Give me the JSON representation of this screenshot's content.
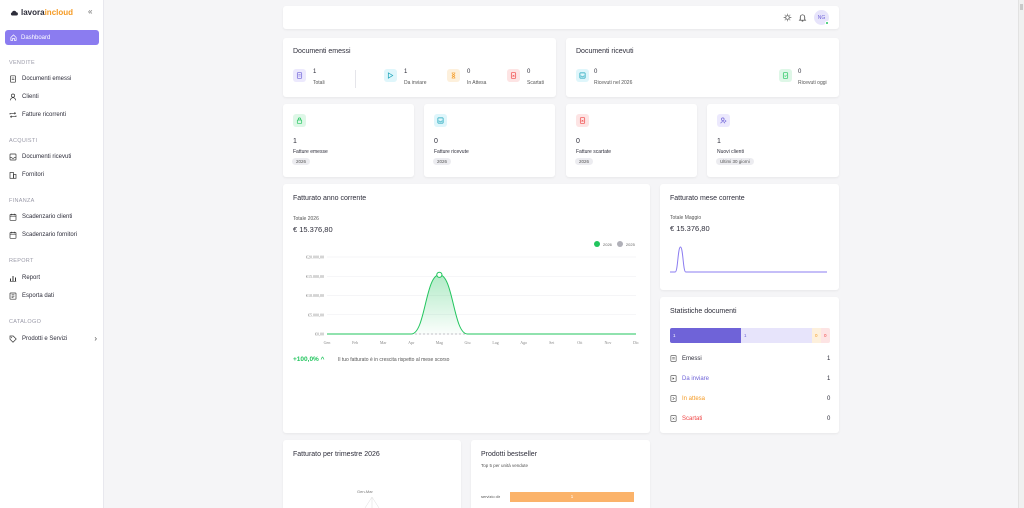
{
  "brand": {
    "part1": "lavora",
    "part2": "incloud"
  },
  "colors": {
    "accent": "#8b7cf0",
    "green": "#22c55e",
    "orange": "#f59a23",
    "red": "#ef4444"
  },
  "sidebar": {
    "dashboard": "Dashboard",
    "sections": [
      {
        "title": "VENDITE",
        "items": [
          "Documenti emessi",
          "Clienti",
          "Fatture ricorrenti"
        ]
      },
      {
        "title": "ACQUISTI",
        "items": [
          "Documenti ricevuti",
          "Fornitori"
        ]
      },
      {
        "title": "FINANZA",
        "items": [
          "Scadenzario clienti",
          "Scadenzario fornitori"
        ]
      },
      {
        "title": "REPORT",
        "items": [
          "Report",
          "Esporta dati"
        ]
      },
      {
        "title": "CATALOGO",
        "items": [
          "Prodotti e Servizi"
        ]
      }
    ]
  },
  "header": {
    "avatar": "NG"
  },
  "emessi": {
    "title": "Documenti emessi",
    "stats": [
      {
        "value": "1",
        "label": "Totali"
      },
      {
        "value": "1",
        "label": "Da inviare"
      },
      {
        "value": "0",
        "label": "In Attesa"
      },
      {
        "value": "0",
        "label": "Scartati"
      }
    ]
  },
  "ricevuti": {
    "title": "Documenti ricevuti",
    "stats": [
      {
        "value": "0",
        "label": "Ricevuti nel 2026"
      },
      {
        "value": "0",
        "label": "Ricevuti oggi"
      }
    ]
  },
  "kpis": [
    {
      "value": "1",
      "label": "Fatture emesse",
      "chip": "2026"
    },
    {
      "value": "0",
      "label": "Fatture ricevute",
      "chip": "2026"
    },
    {
      "value": "0",
      "label": "Fatture scartate",
      "chip": "2026"
    },
    {
      "value": "1",
      "label": "Nuovi clienti",
      "chip": "Ultimi 30 giorni"
    }
  ],
  "fatturato_anno": {
    "title": "Fatturato anno corrente",
    "sub": "Totale 2026",
    "total": "€ 15.376,80",
    "legend": [
      "2026",
      "2025"
    ],
    "growth": "+100,0%",
    "growth_text": "Il tuo fatturato è in crescita rispetto al mese scorso"
  },
  "fatturato_mese": {
    "title": "Fatturato mese corrente",
    "sub": "Totale Maggio",
    "total": "€ 15.376,80"
  },
  "statistiche": {
    "title": "Statistiche documenti",
    "bar": {
      "emessi": "1",
      "da_inviare": "1",
      "in_attesa": "0",
      "scartati": "0"
    },
    "rows": [
      {
        "label": "Emessi",
        "value": "1"
      },
      {
        "label": "Da inviare",
        "value": "1"
      },
      {
        "label": "In attesa",
        "value": "0"
      },
      {
        "label": "Scartati",
        "value": "0"
      }
    ]
  },
  "trimestre": {
    "title": "Fatturato per trimestre 2026",
    "center": "Gen-Mar"
  },
  "bestseller": {
    "title": "Prodotti bestseller",
    "sub": "Top 5 per unità vendute",
    "items": [
      {
        "name": "servizio dir",
        "value": "1"
      }
    ]
  },
  "chart_data": [
    {
      "type": "area",
      "title": "Fatturato anno corrente",
      "categories": [
        "Gen",
        "Feb",
        "Mar",
        "Apr",
        "Mag",
        "Giu",
        "Lug",
        "Ago",
        "Set",
        "Ott",
        "Nov",
        "Dic"
      ],
      "yticks": [
        "€0,00",
        "€5.000,00",
        "€10.000,00",
        "€15.000,00",
        "€20.000,00"
      ],
      "ylim": [
        0,
        20000
      ],
      "series": [
        {
          "name": "2026",
          "color": "#22c55e",
          "values": [
            0,
            0,
            0,
            0,
            15376.8,
            0,
            0,
            0,
            0,
            0,
            0,
            0
          ]
        },
        {
          "name": "2025",
          "color": "#b0b0b8",
          "values": [
            0,
            0,
            0,
            0,
            0,
            0,
            0,
            0,
            0,
            0,
            0,
            0
          ]
        }
      ],
      "grid": true,
      "legend": "top-right"
    },
    {
      "type": "line",
      "title": "Fatturato mese corrente",
      "values": [
        0,
        0,
        15376.8,
        0,
        0,
        0,
        0,
        0,
        0,
        0,
        0,
        0,
        0,
        0,
        0,
        0,
        0,
        0,
        0,
        0,
        0,
        0,
        0,
        0,
        0,
        0,
        0,
        0,
        0,
        0,
        0
      ],
      "color": "#8b7cf0"
    }
  ]
}
